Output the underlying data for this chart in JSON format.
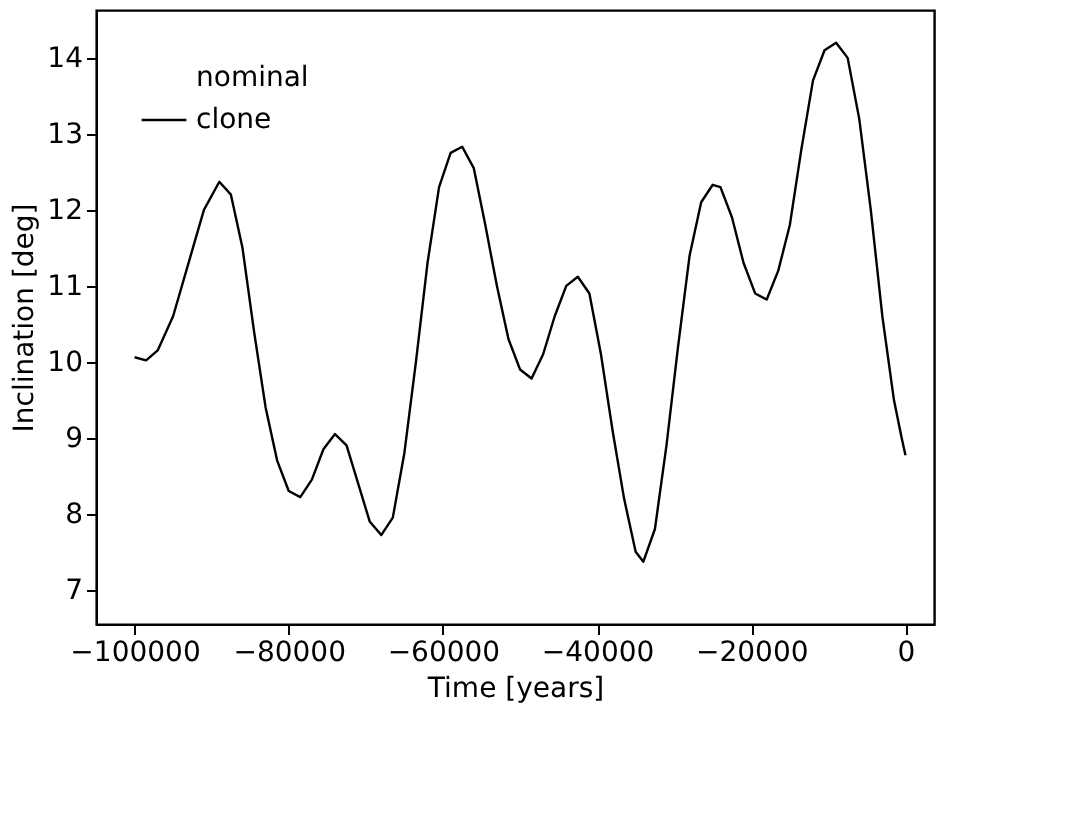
{
  "chart_data": {
    "type": "line",
    "xlabel": "Time [years]",
    "ylabel": "Inclination [deg]",
    "x": [
      -100000,
      -98500,
      -97000,
      -95000,
      -93000,
      -91000,
      -89000,
      -87500,
      -86000,
      -84500,
      -83000,
      -81500,
      -80000,
      -78500,
      -77000,
      -75500,
      -74000,
      -72500,
      -71000,
      -69500,
      -68000,
      -66500,
      -65000,
      -63500,
      -62000,
      -60500,
      -59000,
      -57500,
      -56000,
      -54500,
      -53000,
      -51500,
      -50000,
      -48500,
      -47000,
      -45500,
      -44000,
      -42500,
      -41000,
      -39500,
      -38000,
      -36500,
      -35000,
      -34000,
      -32500,
      -31000,
      -29500,
      -28000,
      -26500,
      -25000,
      -24000,
      -22500,
      -21000,
      -19500,
      -18000,
      -16500,
      -15000,
      -13500,
      -12000,
      -10500,
      -9000,
      -7500,
      -6000,
      -4500,
      -3000,
      -1500,
      -500,
      0
    ],
    "series": [
      {
        "name": "nominal",
        "values": [
          null,
          null,
          null,
          null,
          null,
          null,
          null,
          null,
          null,
          null,
          null,
          null,
          null,
          null,
          null,
          null,
          null,
          null,
          null,
          null,
          null,
          null,
          null,
          null,
          null,
          null,
          null,
          null,
          null,
          null,
          null,
          null,
          null,
          null,
          null,
          null,
          null,
          null,
          null,
          null,
          null,
          null,
          null,
          null,
          null,
          null,
          null,
          null,
          null,
          null,
          null,
          null,
          null,
          null,
          null,
          null,
          null,
          null,
          null,
          null,
          null,
          null,
          null,
          null,
          null,
          null,
          null,
          null
        ]
      },
      {
        "name": "clone",
        "color": "#000000",
        "values": [
          10.06,
          10.02,
          10.15,
          10.6,
          11.3,
          12.0,
          12.37,
          12.2,
          11.5,
          10.4,
          9.4,
          8.7,
          8.3,
          8.22,
          8.45,
          8.85,
          9.05,
          8.9,
          8.4,
          7.9,
          7.72,
          7.95,
          8.8,
          10.0,
          11.3,
          12.3,
          12.75,
          12.83,
          12.55,
          11.8,
          11.0,
          10.3,
          9.9,
          9.78,
          10.1,
          10.6,
          11.0,
          11.12,
          10.9,
          10.1,
          9.1,
          8.2,
          7.5,
          7.37,
          7.8,
          8.9,
          10.2,
          11.4,
          12.1,
          12.33,
          12.3,
          11.9,
          11.3,
          10.9,
          10.82,
          11.2,
          11.8,
          12.8,
          13.7,
          14.1,
          14.2,
          14.0,
          13.2,
          12.0,
          10.6,
          9.5,
          9.0,
          8.77
        ]
      }
    ],
    "xlim": [
      -105000,
      3700
    ],
    "ylim": [
      6.55,
      14.63
    ],
    "xticks": [
      -100000,
      -80000,
      -60000,
      -40000,
      -20000,
      0
    ],
    "yticks": [
      7,
      8,
      9,
      10,
      11,
      12,
      13,
      14
    ],
    "grid": false,
    "legend": "top left",
    "line_style": "solid"
  }
}
